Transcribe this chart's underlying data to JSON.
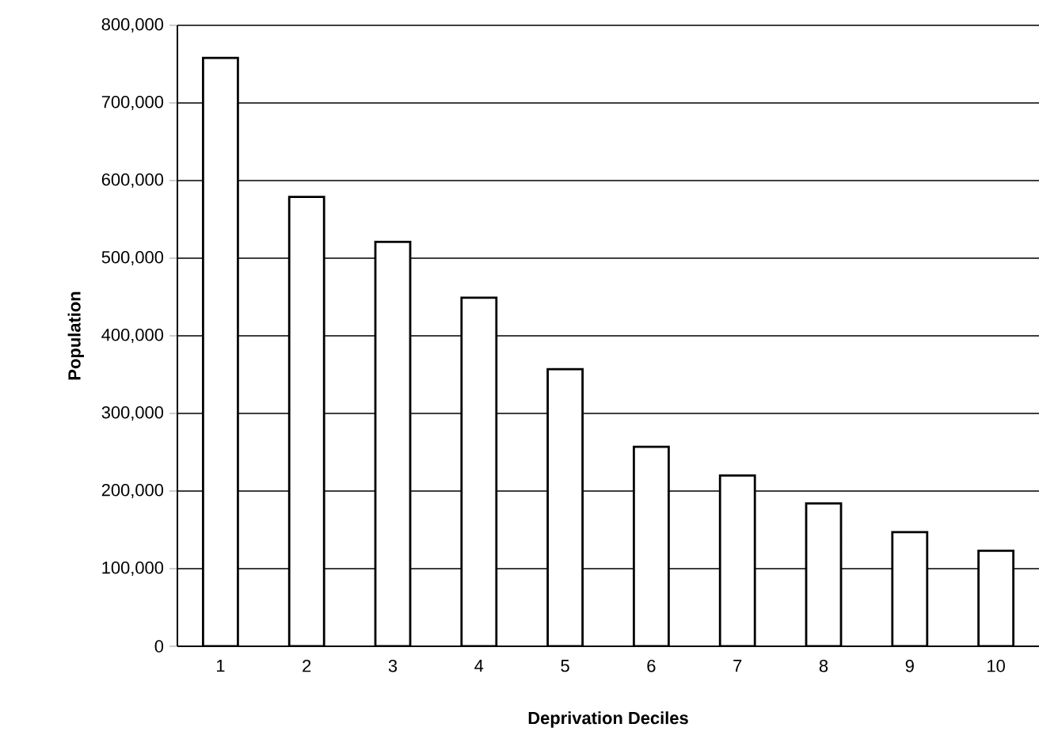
{
  "chart_data": {
    "type": "bar",
    "xlabel": "Deprivation Deciles",
    "ylabel": "Population",
    "categories": [
      "1",
      "2",
      "3",
      "4",
      "5",
      "6",
      "7",
      "8",
      "9",
      "10"
    ],
    "values": [
      758000,
      579000,
      521000,
      449000,
      357000,
      257000,
      220000,
      184000,
      147000,
      123000
    ],
    "color": "#ffffff",
    "ylim": [
      0,
      800000
    ],
    "yticks": [
      {
        "value": 0,
        "label": "0"
      },
      {
        "value": 100000,
        "label": "100,000"
      },
      {
        "value": 200000,
        "label": "200,000"
      },
      {
        "value": 300000,
        "label": "300,000"
      },
      {
        "value": 400000,
        "label": "400,000"
      },
      {
        "value": 500000,
        "label": "500,000"
      },
      {
        "value": 600000,
        "label": "600,000"
      },
      {
        "value": 700000,
        "label": "700,000"
      },
      {
        "value": 800000,
        "label": "800,000"
      }
    ],
    "grid": "y"
  }
}
